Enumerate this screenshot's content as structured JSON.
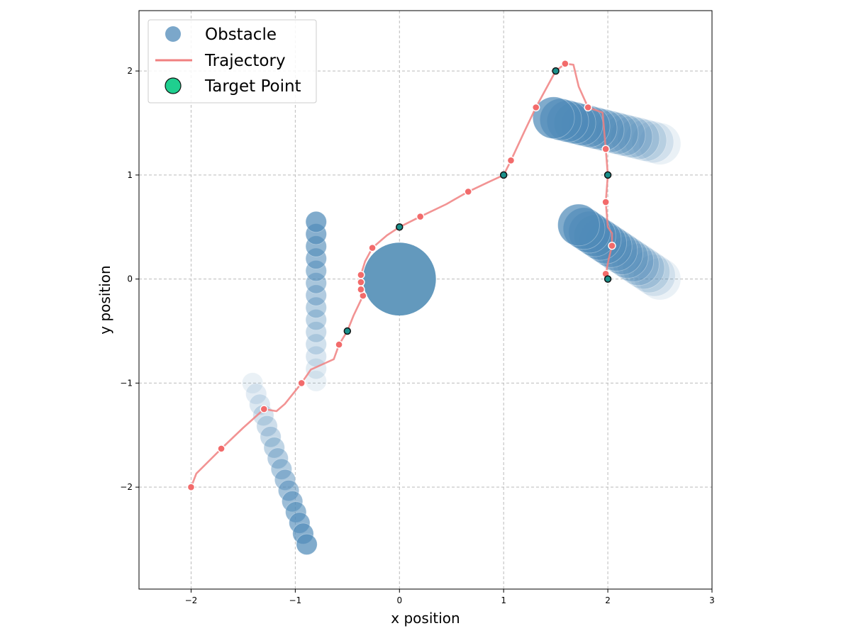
{
  "chart_data": {
    "type": "scatter",
    "title": "",
    "xlabel": "x position",
    "ylabel": "y position",
    "xlim": [
      -2.5,
      3.0
    ],
    "ylim": [
      -2.98,
      2.58
    ],
    "x_ticks": [
      -2,
      -1,
      0,
      1,
      2,
      3
    ],
    "y_ticks": [
      -2,
      -1,
      0,
      1,
      2
    ],
    "x_tick_labels": [
      "−2",
      "−1",
      "0",
      "1",
      "2",
      "3"
    ],
    "y_tick_labels": [
      "−2",
      "−1",
      "0",
      "1",
      "2"
    ],
    "grid": true,
    "legend_position": "top-left",
    "legend": [
      {
        "label": "Obstacle",
        "kind": "obstacle"
      },
      {
        "label": "Trajectory",
        "kind": "trajectory"
      },
      {
        "label": "Target Point",
        "kind": "target"
      }
    ],
    "colors": {
      "obstacle": "#4f8ab8",
      "obstacle_static": "#6399bd",
      "trajectory": "#f08080",
      "trajectory_marker": "#f26b6b",
      "target_fill": "#1a8f8a",
      "target_edge": "#111111",
      "grid": "#bbbbbb"
    },
    "obstacles": [
      {
        "name": "static-center",
        "radius": 0.35,
        "start": [
          0.0,
          0.0
        ],
        "end": [
          0.0,
          0.0
        ],
        "steps": 1
      },
      {
        "name": "vertical-moving",
        "radius": 0.1,
        "start": [
          -0.8,
          -0.98
        ],
        "end": [
          -0.8,
          0.55
        ],
        "steps": 14
      },
      {
        "name": "diagonal-moving",
        "radius": 0.1,
        "start": [
          -1.41,
          -1.0
        ],
        "end": [
          -0.89,
          -2.55
        ],
        "steps": 16
      },
      {
        "name": "upper-right-moving",
        "radius": 0.2,
        "start": [
          2.5,
          1.3
        ],
        "end": [
          1.48,
          1.55
        ],
        "steps": 16
      },
      {
        "name": "lower-right-moving",
        "radius": 0.2,
        "start": [
          2.5,
          0.0
        ],
        "end": [
          1.72,
          0.52
        ],
        "steps": 16
      }
    ],
    "trajectory": [
      [
        -2.0,
        -2.0
      ],
      [
        -1.95,
        -1.87
      ],
      [
        -1.71,
        -1.63
      ],
      [
        -1.5,
        -1.43
      ],
      [
        -1.3,
        -1.25
      ],
      [
        -1.18,
        -1.27
      ],
      [
        -1.1,
        -1.2
      ],
      [
        -0.94,
        -1.0
      ],
      [
        -0.85,
        -0.87
      ],
      [
        -0.74,
        -0.82
      ],
      [
        -0.63,
        -0.77
      ],
      [
        -0.58,
        -0.63
      ],
      [
        -0.5,
        -0.5
      ],
      [
        -0.44,
        -0.35
      ],
      [
        -0.35,
        -0.16
      ],
      [
        -0.37,
        -0.1
      ],
      [
        -0.37,
        -0.03
      ],
      [
        -0.37,
        0.04
      ],
      [
        -0.33,
        0.17
      ],
      [
        -0.26,
        0.3
      ],
      [
        -0.12,
        0.42
      ],
      [
        0.0,
        0.5
      ],
      [
        0.2,
        0.6
      ],
      [
        0.45,
        0.72
      ],
      [
        0.66,
        0.84
      ],
      [
        0.85,
        0.93
      ],
      [
        1.0,
        1.0
      ],
      [
        1.07,
        1.14
      ],
      [
        1.2,
        1.42
      ],
      [
        1.31,
        1.65
      ],
      [
        1.5,
        2.0
      ],
      [
        1.59,
        2.07
      ],
      [
        1.67,
        2.06
      ],
      [
        1.72,
        1.85
      ],
      [
        1.81,
        1.65
      ],
      [
        1.95,
        1.6
      ],
      [
        1.98,
        1.25
      ],
      [
        2.0,
        1.0
      ],
      [
        1.98,
        0.74
      ],
      [
        2.0,
        0.5
      ],
      [
        2.04,
        0.44
      ],
      [
        2.04,
        0.32
      ],
      [
        2.01,
        0.2
      ],
      [
        1.98,
        0.05
      ],
      [
        2.0,
        0.0
      ]
    ],
    "trajectory_markers": [
      [
        -2.0,
        -2.0
      ],
      [
        -1.71,
        -1.63
      ],
      [
        -1.3,
        -1.25
      ],
      [
        -0.94,
        -1.0
      ],
      [
        -0.58,
        -0.63
      ],
      [
        -0.35,
        -0.16
      ],
      [
        -0.37,
        -0.1
      ],
      [
        -0.37,
        -0.03
      ],
      [
        -0.37,
        0.04
      ],
      [
        -0.26,
        0.3
      ],
      [
        0.2,
        0.6
      ],
      [
        0.66,
        0.84
      ],
      [
        1.07,
        1.14
      ],
      [
        1.31,
        1.65
      ],
      [
        1.59,
        2.07
      ],
      [
        1.81,
        1.65
      ],
      [
        1.98,
        1.25
      ],
      [
        1.98,
        0.74
      ],
      [
        2.04,
        0.32
      ],
      [
        1.98,
        0.05
      ]
    ],
    "target_points": [
      [
        -0.5,
        -0.5
      ],
      [
        0.0,
        0.5
      ],
      [
        1.0,
        1.0
      ],
      [
        1.5,
        2.0
      ],
      [
        2.0,
        1.0
      ],
      [
        2.0,
        0.0
      ]
    ]
  }
}
